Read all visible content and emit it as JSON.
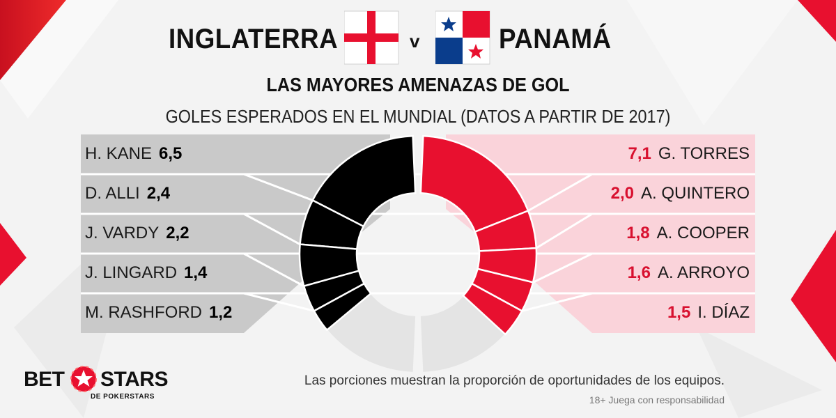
{
  "header": {
    "team_left": "INGLATERRA",
    "vs": "v",
    "team_right": "PANAMÁ",
    "title": "LAS MAYORES AMENAZAS DE GOL",
    "subtitle": "GOLES ESPERADOS EN EL MUNDIAL (DATOS A PARTIR DE 2017)"
  },
  "chart_data": {
    "type": "pie",
    "title": "LAS MAYORES AMENAZAS DE GOL",
    "subtitle": "GOLES ESPERADOS EN EL MUNDIAL (DATOS A PARTIR DE 2017)",
    "series": [
      {
        "name": "INGLATERRA",
        "color": "#000000",
        "panel_color": "#c9c9c9",
        "players": [
          {
            "label": "H. KANE",
            "value": 6.5,
            "display": "6,5"
          },
          {
            "label": "D. ALLI",
            "value": 2.4,
            "display": "2,4"
          },
          {
            "label": "J. VARDY",
            "value": 2.2,
            "display": "2,2"
          },
          {
            "label": "J. LINGARD",
            "value": 1.4,
            "display": "1,4"
          },
          {
            "label": "M. RASHFORD",
            "value": 1.2,
            "display": "1,2"
          }
        ]
      },
      {
        "name": "PANAMÁ",
        "color": "#e8102f",
        "panel_color": "#fad3da",
        "players": [
          {
            "label": "G. TORRES",
            "value": 7.1,
            "display": "7,1"
          },
          {
            "label": "A. QUINTERO",
            "value": 2.0,
            "display": "2,0"
          },
          {
            "label": "A. COOPER",
            "value": 1.8,
            "display": "1,8"
          },
          {
            "label": "A. ARROYO",
            "value": 1.6,
            "display": "1,6"
          },
          {
            "label": "I. DÍAZ",
            "value": 1.5,
            "display": "1,5"
          }
        ]
      }
    ],
    "remainder_color": "#e4e4e4"
  },
  "footer": {
    "note": "Las porciones muestran la proporción de oportunidades de los equipos.",
    "responsibility": "18+ Juega con responsabilidad"
  },
  "logo": {
    "bet": "BET",
    "stars": "STARS",
    "sub": "DE POKERSTARS"
  },
  "icons": [
    "england-flag-icon",
    "panama-flag-icon",
    "betstars-logo-icon"
  ],
  "colors": {
    "england": "#000000",
    "panama": "#e8102f",
    "panama_text": "#d8102f"
  }
}
